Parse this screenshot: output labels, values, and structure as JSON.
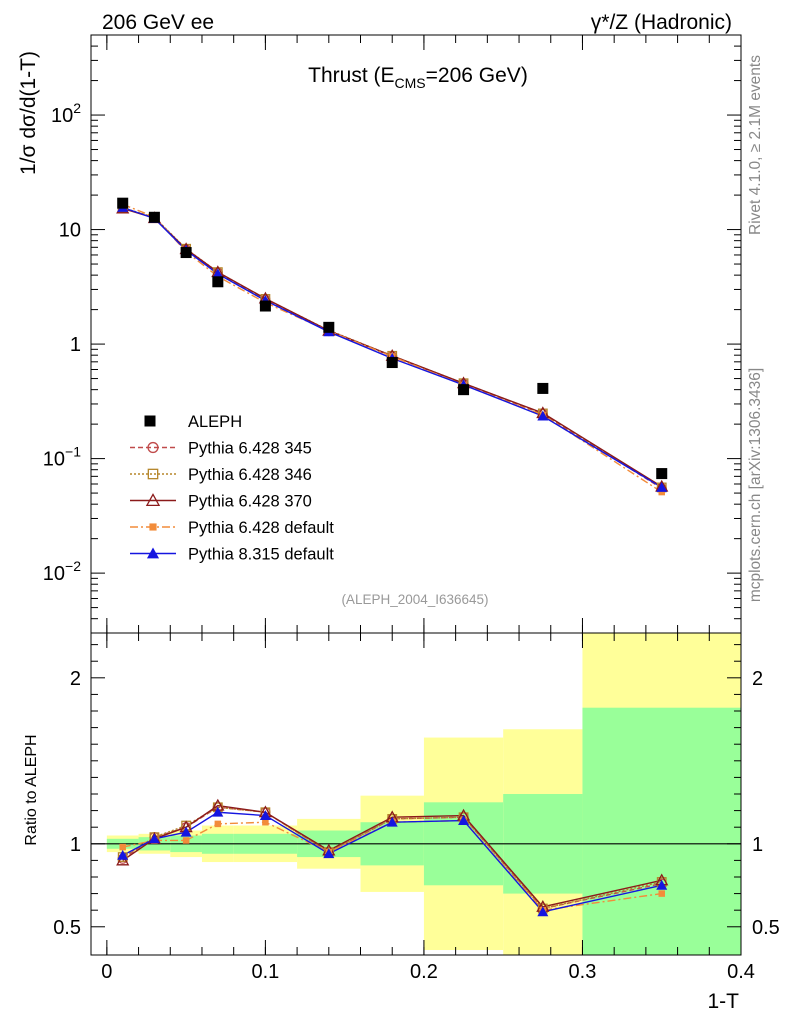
{
  "header": {
    "left_label": "206 GeV ee",
    "right_label": "γ*/Z (Hadronic)"
  },
  "side_labels": {
    "rivet": "Rivet 4.1.0, ≥ 2.1M events",
    "mcplots": "mcplots.cern.ch [arXiv:1306.3436]"
  },
  "chart_data": [
    {
      "type": "line",
      "panel": "main",
      "title_main": "Thrust (E",
      "title_sub": "CMS",
      "title_tail": "=206 GeV)",
      "ylabel": "1/σ  dσ/d(1-T)",
      "yscale": "log",
      "ylim": [
        0.003,
        500
      ],
      "xlim": [
        -0.01,
        0.4
      ],
      "yticks": [
        {
          "value": 0.01,
          "label": "10",
          "exp": "−2"
        },
        {
          "value": 0.1,
          "label": "10",
          "exp": "−1"
        },
        {
          "value": 1,
          "label": "1",
          "exp": ""
        },
        {
          "value": 10,
          "label": "10",
          "exp": ""
        },
        {
          "value": 100,
          "label": "10",
          "exp": "2"
        }
      ],
      "x": [
        0.01,
        0.03,
        0.05,
        0.07,
        0.1,
        0.14,
        0.18,
        0.225,
        0.275,
        0.35
      ],
      "data": {
        "name": "ALEPH",
        "values": [
          17.0,
          12.8,
          6.3,
          3.5,
          2.15,
          1.4,
          0.69,
          0.4,
          0.41,
          0.074
        ]
      },
      "series": [
        {
          "name": "Pythia 6.428 345",
          "color": "#c04b4b",
          "marker": "open-circle",
          "dash": "5,3",
          "values": [
            15.4,
            12.7,
            6.7,
            4.2,
            2.45,
            1.3,
            0.78,
            0.45,
            0.245,
            0.055
          ]
        },
        {
          "name": "Pythia 6.428 346",
          "color": "#b5852a",
          "marker": "open-square",
          "dash": "2,2",
          "values": [
            15.5,
            12.8,
            6.8,
            4.25,
            2.48,
            1.32,
            0.79,
            0.455,
            0.248,
            0.056
          ]
        },
        {
          "name": "Pythia 6.428 370",
          "color": "#8b1a1a",
          "marker": "open-triangle",
          "dash": "",
          "values": [
            15.3,
            12.6,
            6.75,
            4.25,
            2.5,
            1.31,
            0.79,
            0.455,
            0.25,
            0.057
          ]
        },
        {
          "name": "Pythia 6.428 default",
          "color": "#f28c3a",
          "marker": "filled-square",
          "dash": "8,3,2,3",
          "values": [
            16.6,
            12.9,
            6.4,
            3.9,
            2.3,
            1.3,
            0.78,
            0.44,
            0.24,
            0.051
          ]
        },
        {
          "name": "Pythia 8.315 default",
          "color": "#1515e0",
          "marker": "filled-triangle",
          "dash": "",
          "values": [
            15.6,
            12.5,
            6.6,
            4.1,
            2.4,
            1.28,
            0.75,
            0.44,
            0.235,
            0.056
          ]
        }
      ],
      "watermark": "(ALEPH_2004_I636645)"
    },
    {
      "type": "line",
      "panel": "ratio",
      "ylabel": "Ratio to ALEPH",
      "xlabel": "1-T",
      "ylim": [
        0.33,
        2.27
      ],
      "xlim": [
        -0.01,
        0.4
      ],
      "yticks": [
        {
          "value": 0.5,
          "label": "0.5"
        },
        {
          "value": 1,
          "label": "1"
        },
        {
          "value": 2,
          "label": "2"
        }
      ],
      "xticks": [
        {
          "value": 0,
          "label": "0"
        },
        {
          "value": 0.1,
          "label": "0.1"
        },
        {
          "value": 0.2,
          "label": "0.2"
        },
        {
          "value": 0.3,
          "label": "0.3"
        },
        {
          "value": 0.4,
          "label": "0.4"
        }
      ],
      "uncertainty_bins": [
        {
          "x0": 0.0,
          "x1": 0.02,
          "stat_lo": 0.97,
          "stat_hi": 1.03,
          "tot_lo": 0.95,
          "tot_hi": 1.05
        },
        {
          "x0": 0.02,
          "x1": 0.04,
          "stat_lo": 0.96,
          "stat_hi": 1.04,
          "tot_lo": 0.94,
          "tot_hi": 1.06
        },
        {
          "x0": 0.04,
          "x1": 0.06,
          "stat_lo": 0.95,
          "stat_hi": 1.05,
          "tot_lo": 0.92,
          "tot_hi": 1.08
        },
        {
          "x0": 0.06,
          "x1": 0.08,
          "stat_lo": 0.94,
          "stat_hi": 1.06,
          "tot_lo": 0.89,
          "tot_hi": 1.11
        },
        {
          "x0": 0.08,
          "x1": 0.12,
          "stat_lo": 0.94,
          "stat_hi": 1.06,
          "tot_lo": 0.89,
          "tot_hi": 1.11
        },
        {
          "x0": 0.12,
          "x1": 0.16,
          "stat_lo": 0.92,
          "stat_hi": 1.08,
          "tot_lo": 0.85,
          "tot_hi": 1.15
        },
        {
          "x0": 0.16,
          "x1": 0.2,
          "stat_lo": 0.87,
          "stat_hi": 1.13,
          "tot_lo": 0.71,
          "tot_hi": 1.29
        },
        {
          "x0": 0.2,
          "x1": 0.25,
          "stat_lo": 0.75,
          "stat_hi": 1.25,
          "tot_lo": 0.36,
          "tot_hi": 1.64
        },
        {
          "x0": 0.25,
          "x1": 0.3,
          "stat_lo": 0.7,
          "stat_hi": 1.3,
          "tot_lo": 0.33,
          "tot_hi": 1.69
        },
        {
          "x0": 0.3,
          "x1": 0.4,
          "stat_lo": 0.33,
          "stat_hi": 1.82,
          "tot_lo": 0.33,
          "tot_hi": 2.27
        }
      ],
      "x": [
        0.01,
        0.03,
        0.05,
        0.07,
        0.1,
        0.14,
        0.18,
        0.225,
        0.275,
        0.35
      ],
      "series": [
        {
          "name": "Pythia 6.428 345",
          "color": "#c04b4b",
          "marker": "open-circle",
          "dash": "5,3",
          "values": [
            0.91,
            1.04,
            1.1,
            1.22,
            1.19,
            0.95,
            1.15,
            1.16,
            0.61,
            0.76
          ]
        },
        {
          "name": "Pythia 6.428 346",
          "color": "#b5852a",
          "marker": "open-square",
          "dash": "2,2",
          "values": [
            0.92,
            1.04,
            1.11,
            1.22,
            1.19,
            0.95,
            1.15,
            1.16,
            0.61,
            0.77
          ]
        },
        {
          "name": "Pythia 6.428 370",
          "color": "#8b1a1a",
          "marker": "open-triangle",
          "dash": "",
          "values": [
            0.9,
            1.03,
            1.1,
            1.23,
            1.19,
            0.96,
            1.16,
            1.17,
            0.62,
            0.78
          ]
        },
        {
          "name": "Pythia 6.428 default",
          "color": "#f28c3a",
          "marker": "filled-square",
          "dash": "8,3,2,3",
          "values": [
            0.98,
            1.02,
            1.02,
            1.12,
            1.13,
            0.95,
            1.13,
            1.14,
            0.6,
            0.7
          ]
        },
        {
          "name": "Pythia 8.315 default",
          "color": "#1515e0",
          "marker": "filled-triangle",
          "dash": "",
          "values": [
            0.93,
            1.03,
            1.07,
            1.19,
            1.17,
            0.94,
            1.13,
            1.14,
            0.59,
            0.75
          ]
        }
      ]
    }
  ]
}
